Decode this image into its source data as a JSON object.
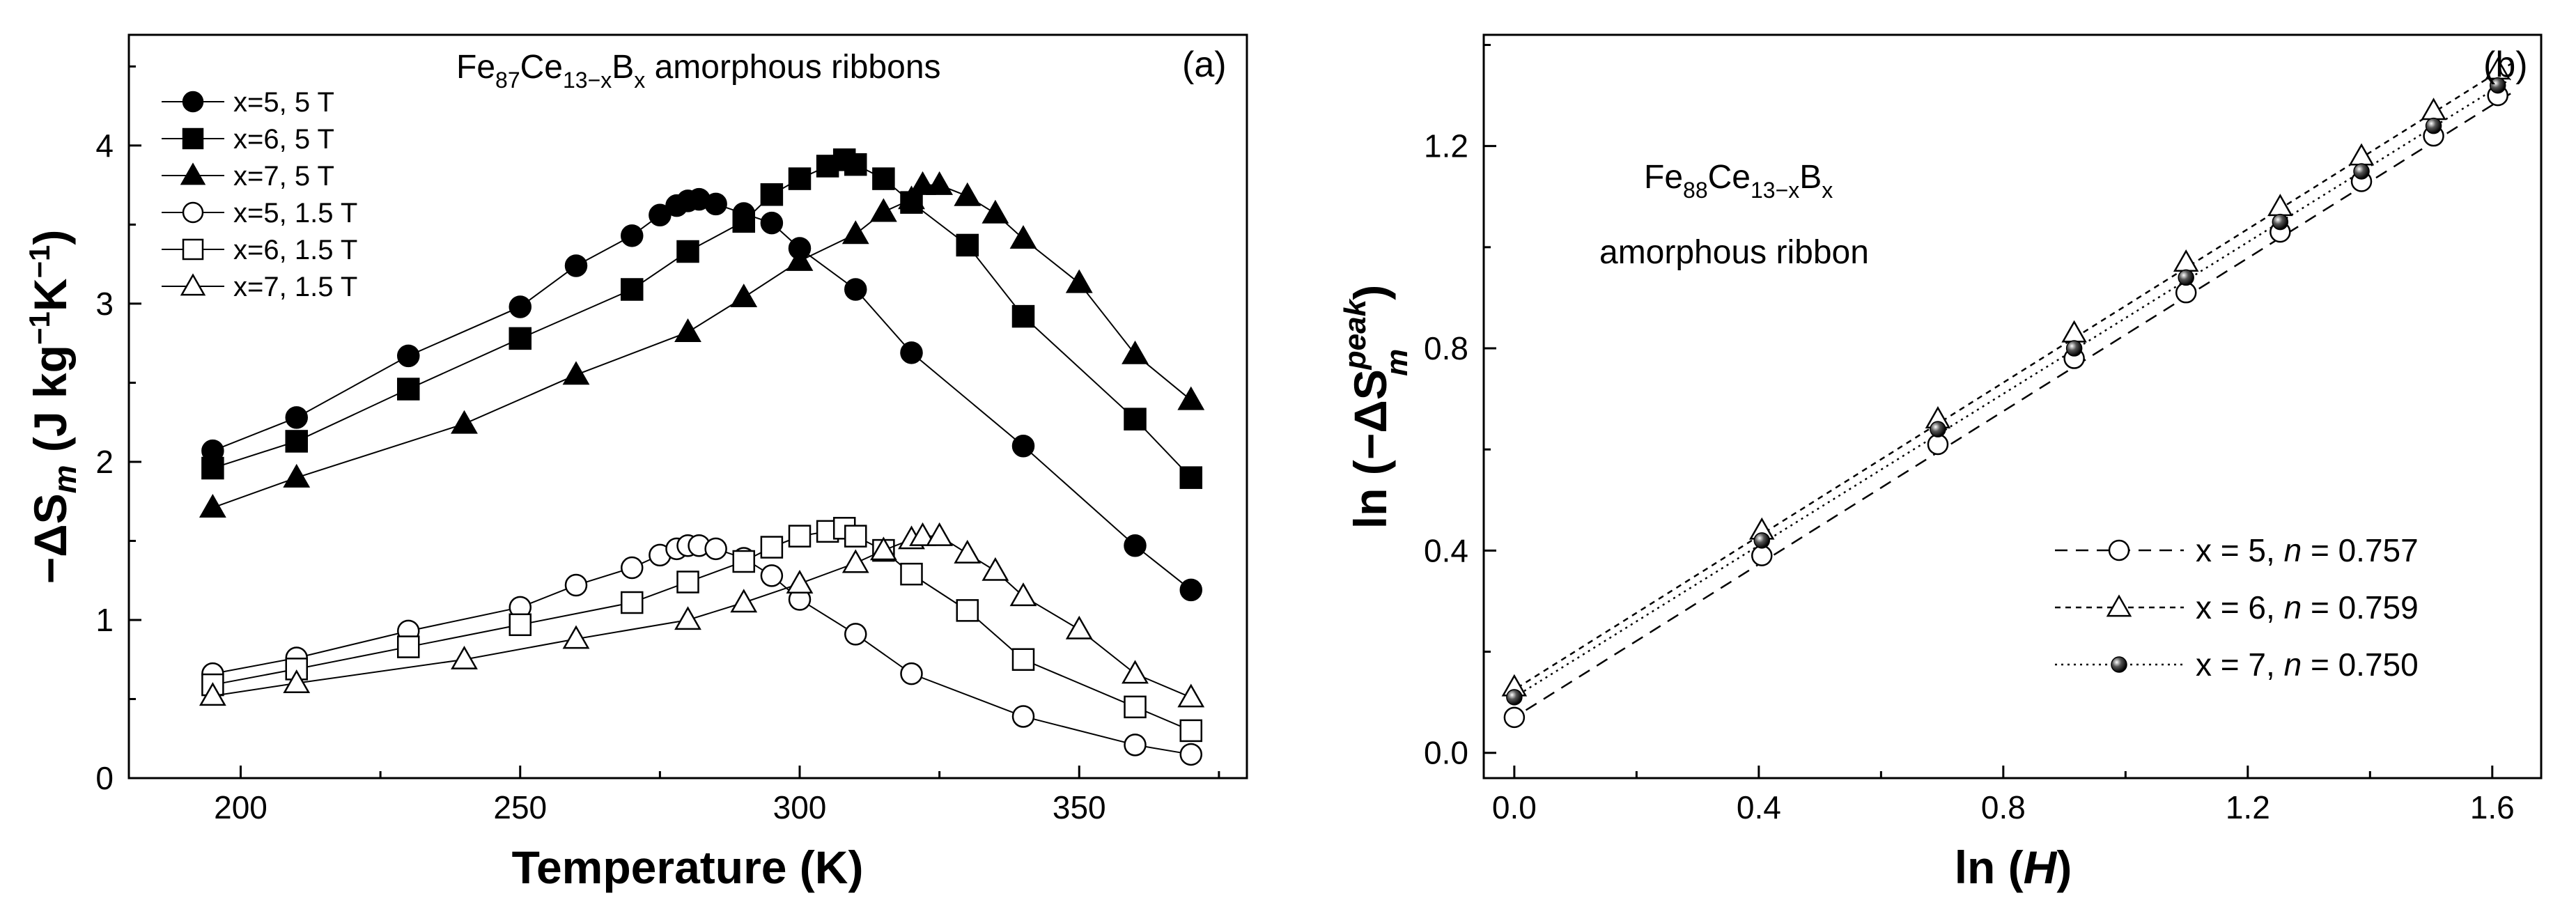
{
  "chart_data": [
    {
      "type": "line",
      "panel_label": "(a)",
      "title_parts": {
        "a": "Fe",
        "sub1": "87",
        "b": "Ce",
        "sub2": "13−x",
        "c": "B",
        "sub3": "x",
        "rest": " amorphous ribbons"
      },
      "xlabel": "Temperature (K)",
      "ylabel_parts": {
        "a": "−ΔS",
        "sub": "m",
        "b": " (J kg",
        "sup1": "−1",
        "c": "K",
        "sup2": "−1",
        "d": ")"
      },
      "xlim": [
        180,
        380
      ],
      "ylim": [
        0,
        4.7
      ],
      "xticks": [
        200,
        250,
        300,
        350
      ],
      "yticks": [
        0,
        1,
        2,
        3,
        4
      ],
      "legend_position": "top-left",
      "series": [
        {
          "name": "x=5, 5 T",
          "marker": "circle",
          "filled": true,
          "x": [
            195,
            210,
            230,
            250,
            260,
            270,
            275,
            278,
            280,
            282,
            285,
            290,
            295,
            300,
            310,
            320,
            340,
            360,
            370
          ],
          "y": [
            2.07,
            2.28,
            2.67,
            2.98,
            3.24,
            3.43,
            3.56,
            3.62,
            3.65,
            3.66,
            3.63,
            3.57,
            3.51,
            3.35,
            3.09,
            2.69,
            2.1,
            1.47,
            1.19
          ]
        },
        {
          "name": "x=6, 5 T",
          "marker": "square",
          "filled": true,
          "x": [
            195,
            210,
            230,
            250,
            270,
            280,
            290,
            295,
            300,
            305,
            308,
            310,
            315,
            320,
            330,
            340,
            360,
            370
          ],
          "y": [
            1.96,
            2.13,
            2.46,
            2.78,
            3.09,
            3.33,
            3.52,
            3.69,
            3.79,
            3.87,
            3.91,
            3.88,
            3.79,
            3.64,
            3.37,
            2.92,
            2.27,
            1.9
          ]
        },
        {
          "name": "x=7, 5 T",
          "marker": "triangle",
          "filled": true,
          "x": [
            195,
            210,
            240,
            260,
            280,
            290,
            300,
            310,
            315,
            320,
            322,
            325,
            330,
            335,
            340,
            350,
            360,
            370
          ],
          "y": [
            1.71,
            1.9,
            2.24,
            2.55,
            2.82,
            3.04,
            3.27,
            3.44,
            3.58,
            3.66,
            3.75,
            3.75,
            3.68,
            3.57,
            3.41,
            3.13,
            2.68,
            2.39
          ]
        },
        {
          "name": "x=5, 1.5 T",
          "marker": "circle",
          "filled": false,
          "x": [
            195,
            210,
            230,
            250,
            260,
            270,
            275,
            278,
            280,
            282,
            285,
            290,
            295,
            300,
            310,
            320,
            340,
            360,
            370
          ],
          "y": [
            0.66,
            0.76,
            0.93,
            1.08,
            1.22,
            1.33,
            1.41,
            1.45,
            1.47,
            1.47,
            1.45,
            1.39,
            1.28,
            1.13,
            0.91,
            0.66,
            0.39,
            0.21,
            0.15
          ]
        },
        {
          "name": "x=6, 1.5 T",
          "marker": "square",
          "filled": false,
          "x": [
            195,
            210,
            230,
            250,
            270,
            280,
            290,
            295,
            300,
            305,
            308,
            310,
            315,
            320,
            330,
            340,
            360,
            370
          ],
          "y": [
            0.59,
            0.69,
            0.83,
            0.97,
            1.11,
            1.24,
            1.37,
            1.46,
            1.53,
            1.56,
            1.58,
            1.53,
            1.44,
            1.29,
            1.06,
            0.75,
            0.45,
            0.3
          ]
        },
        {
          "name": "x=7, 1.5 T",
          "marker": "triangle",
          "filled": false,
          "x": [
            195,
            210,
            240,
            260,
            280,
            290,
            300,
            310,
            315,
            320,
            322,
            325,
            330,
            335,
            340,
            350,
            360,
            370
          ],
          "y": [
            0.52,
            0.6,
            0.75,
            0.88,
            1.0,
            1.11,
            1.23,
            1.36,
            1.44,
            1.51,
            1.53,
            1.53,
            1.42,
            1.31,
            1.15,
            0.94,
            0.66,
            0.51
          ]
        }
      ]
    },
    {
      "type": "line",
      "panel_label": "(b)",
      "annotation_parts": {
        "a": "Fe",
        "sub1": "88",
        "b": "Ce",
        "sub2": "13−x",
        "c": "B",
        "sub3": "x",
        "line2": "amorphous ribbon"
      },
      "xlabel_parts": {
        "a": "ln (",
        "i": "H",
        "b": ")"
      },
      "ylabel_parts": {
        "a": "ln (−ΔS",
        "sup": "peak",
        "sub": "m",
        "b": ")"
      },
      "xlim": [
        -0.05,
        1.68
      ],
      "ylim": [
        -0.05,
        1.42
      ],
      "xticks": [
        "0.0",
        "0.4",
        "0.8",
        "1.2",
        "1.6"
      ],
      "yticks": [
        "0.0",
        "0.4",
        "0.8",
        "1.2"
      ],
      "legend_position": "bottom-right",
      "series": [
        {
          "name": "x = 5, n = 0.757",
          "label_a": "x = 5, ",
          "label_n": "n",
          "label_b": " = 0.757",
          "marker": "circle",
          "style": "open",
          "dash": "dashed",
          "fit": {
            "slope": 0.757,
            "intercept": 0.07
          },
          "x": [
            0.0,
            0.405,
            0.693,
            0.916,
            1.099,
            1.253,
            1.386,
            1.504,
            1.609
          ],
          "y": [
            0.07,
            0.39,
            0.61,
            0.78,
            0.91,
            1.03,
            1.13,
            1.22,
            1.3
          ]
        },
        {
          "name": "x = 6, n = 0.759",
          "label_a": "x = 6, ",
          "label_n": "n",
          "label_b": " = 0.759",
          "marker": "triangle",
          "style": "open",
          "dash": "short-dashed",
          "fit": {
            "slope": 0.759,
            "intercept": 0.125
          },
          "x": [
            0.0,
            0.405,
            0.693,
            0.916,
            1.099,
            1.253,
            1.386,
            1.504,
            1.609
          ],
          "y": [
            0.13,
            0.44,
            0.66,
            0.83,
            0.97,
            1.08,
            1.18,
            1.27,
            1.35
          ]
        },
        {
          "name": "x = 7, n = 0.750",
          "label_a": "x = 7, ",
          "label_n": "n",
          "label_b": " = 0.750",
          "marker": "circle",
          "style": "ball",
          "dash": "dotted",
          "fit": {
            "slope": 0.75,
            "intercept": 0.11
          },
          "x": [
            0.0,
            0.405,
            0.693,
            0.916,
            1.099,
            1.253,
            1.386,
            1.504,
            1.609
          ],
          "y": [
            0.11,
            0.42,
            0.64,
            0.8,
            0.94,
            1.05,
            1.15,
            1.24,
            1.32
          ]
        }
      ]
    }
  ]
}
